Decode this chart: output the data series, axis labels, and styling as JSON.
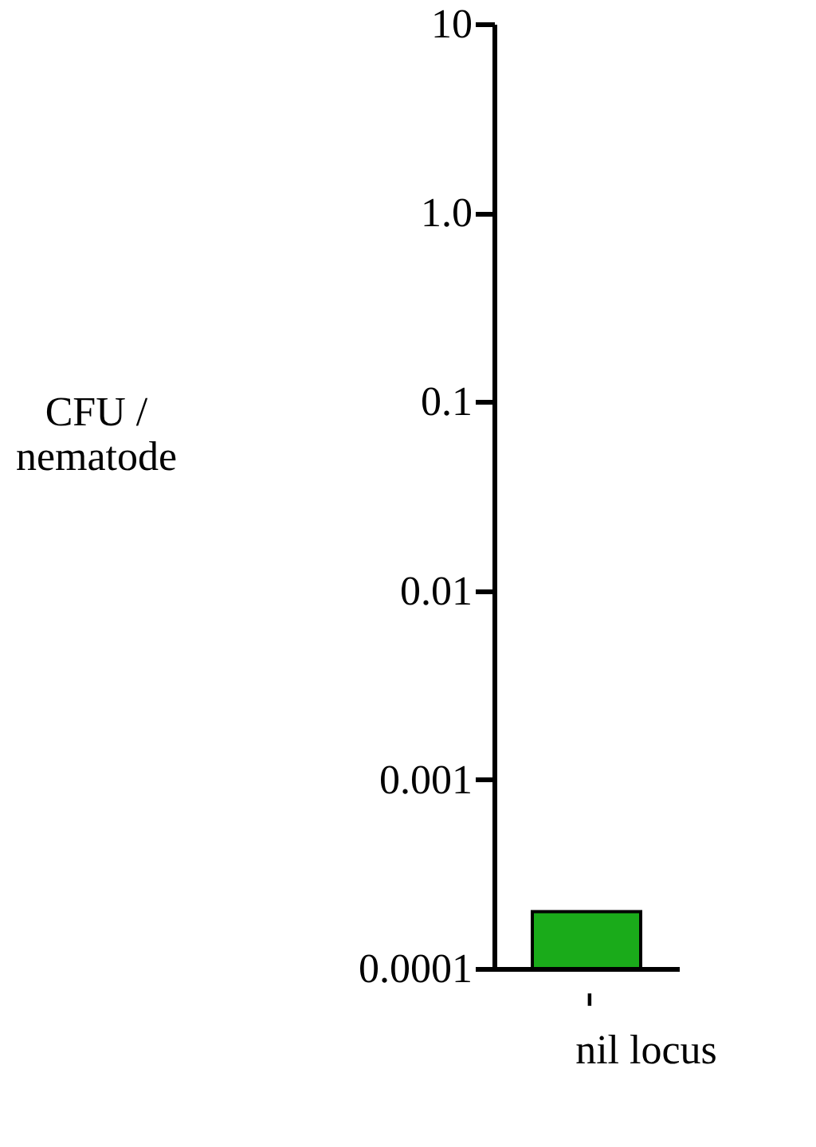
{
  "chart_data": {
    "type": "bar",
    "categories": [
      "-"
    ],
    "values": [
      0.0002
    ],
    "color": "#1aab1a",
    "xlabel": "nil locus",
    "ylabel": "CFU / nematode",
    "log": true,
    "ylim": [
      0.0001,
      10
    ],
    "yticks": [
      0.0001,
      0.001,
      0.01,
      0.1,
      {
        "value": 1,
        "label": "1.0"
      },
      10
    ],
    "grid": false
  }
}
